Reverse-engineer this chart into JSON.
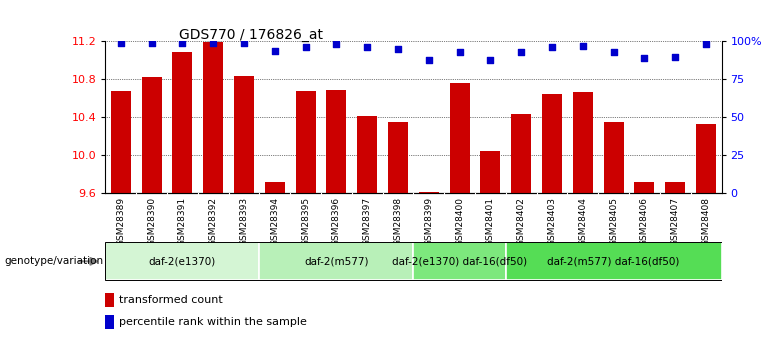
{
  "title": "GDS770 / 176826_at",
  "samples": [
    "GSM28389",
    "GSM28390",
    "GSM28391",
    "GSM28392",
    "GSM28393",
    "GSM28394",
    "GSM28395",
    "GSM28396",
    "GSM28397",
    "GSM28398",
    "GSM28399",
    "GSM28400",
    "GSM28401",
    "GSM28402",
    "GSM28403",
    "GSM28404",
    "GSM28405",
    "GSM28406",
    "GSM28407",
    "GSM28408"
  ],
  "bar_values": [
    10.68,
    10.83,
    11.09,
    11.19,
    10.84,
    9.72,
    10.68,
    10.69,
    10.41,
    10.35,
    9.61,
    10.76,
    10.04,
    10.43,
    10.65,
    10.67,
    10.35,
    9.72,
    9.72,
    10.33
  ],
  "dot_values": [
    99,
    99,
    99,
    99,
    99,
    94,
    96,
    98,
    96,
    95,
    88,
    93,
    88,
    93,
    96,
    97,
    93,
    89,
    90,
    98
  ],
  "ylim_left": [
    9.6,
    11.2
  ],
  "yticks_left": [
    9.6,
    10.0,
    10.4,
    10.8,
    11.2
  ],
  "ytick_labels_right": [
    "0",
    "25",
    "50",
    "75",
    "100%"
  ],
  "yticks_right_vals": [
    0,
    25,
    50,
    75,
    100
  ],
  "bar_color": "#cc0000",
  "dot_color": "#0000cc",
  "groups": [
    {
      "label": "daf-2(e1370)",
      "start": 0,
      "end": 4,
      "color": "#d4f5d4"
    },
    {
      "label": "daf-2(m577)",
      "start": 5,
      "end": 9,
      "color": "#b8f0b8"
    },
    {
      "label": "daf-2(e1370) daf-16(df50)",
      "start": 10,
      "end": 12,
      "color": "#7de87d"
    },
    {
      "label": "daf-2(m577) daf-16(df50)",
      "start": 13,
      "end": 19,
      "color": "#55dd55"
    }
  ],
  "group_row_label": "genotype/variation",
  "legend_bar_label": "transformed count",
  "legend_dot_label": "percentile rank within the sample",
  "tick_label_bg": "#c8c8c8"
}
